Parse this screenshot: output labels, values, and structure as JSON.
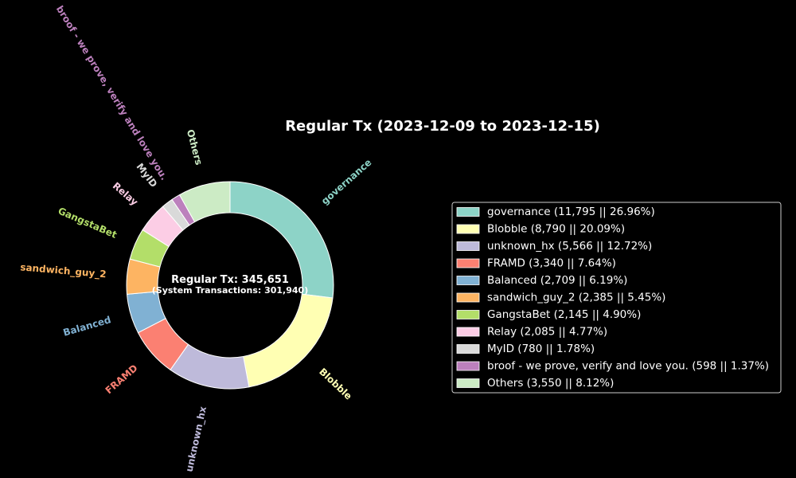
{
  "chart_data": {
    "type": "pie",
    "title": "Regular Tx (2023-12-09 to 2023-12-15)",
    "center_text": {
      "main": "Regular Tx: 345,651",
      "sub": "(System Transactions: 301,940)"
    },
    "start_angle_deg": 90,
    "direction": "clockwise",
    "donut": true,
    "legend_placement": "right",
    "slices": [
      {
        "label": "governance",
        "value": 11795,
        "percent": 26.96,
        "color": "#8dd3c7",
        "legend": "governance (11,795 || 26.96%)"
      },
      {
        "label": "Blobble",
        "value": 8790,
        "percent": 20.09,
        "color": "#ffffb3",
        "legend": "Blobble (8,790 || 20.09%)"
      },
      {
        "label": "unknown_hx",
        "value": 5566,
        "percent": 12.72,
        "color": "#bebada",
        "legend": "unknown_hx (5,566 || 12.72%)"
      },
      {
        "label": "FRAMD",
        "value": 3340,
        "percent": 7.64,
        "color": "#fb8072",
        "legend": "FRAMD (3,340 || 7.64%)"
      },
      {
        "label": "Balanced",
        "value": 2709,
        "percent": 6.19,
        "color": "#80b1d3",
        "legend": "Balanced (2,709 || 6.19%)"
      },
      {
        "label": "sandwich_guy_2",
        "value": 2385,
        "percent": 5.45,
        "color": "#fdb462",
        "legend": "sandwich_guy_2 (2,385 || 5.45%)"
      },
      {
        "label": "GangstaBet",
        "value": 2145,
        "percent": 4.9,
        "color": "#b3de69",
        "legend": "GangstaBet (2,145 || 4.90%)"
      },
      {
        "label": "Relay",
        "value": 2085,
        "percent": 4.77,
        "color": "#fccde5",
        "legend": "Relay (2,085 || 4.77%)"
      },
      {
        "label": "MyID",
        "value": 780,
        "percent": 1.78,
        "color": "#d9d9d9",
        "legend": "MyID (780 || 1.78%)"
      },
      {
        "label": "broof - we prove, verify and love you.",
        "value": 598,
        "percent": 1.37,
        "color": "#bc80bd",
        "legend": "broof - we prove, verify and love you. (598 || 1.37%)"
      },
      {
        "label": "Others",
        "value": 3550,
        "percent": 8.12,
        "color": "#ccebc5",
        "legend": "Others (3,550 || 8.12%)"
      }
    ]
  }
}
